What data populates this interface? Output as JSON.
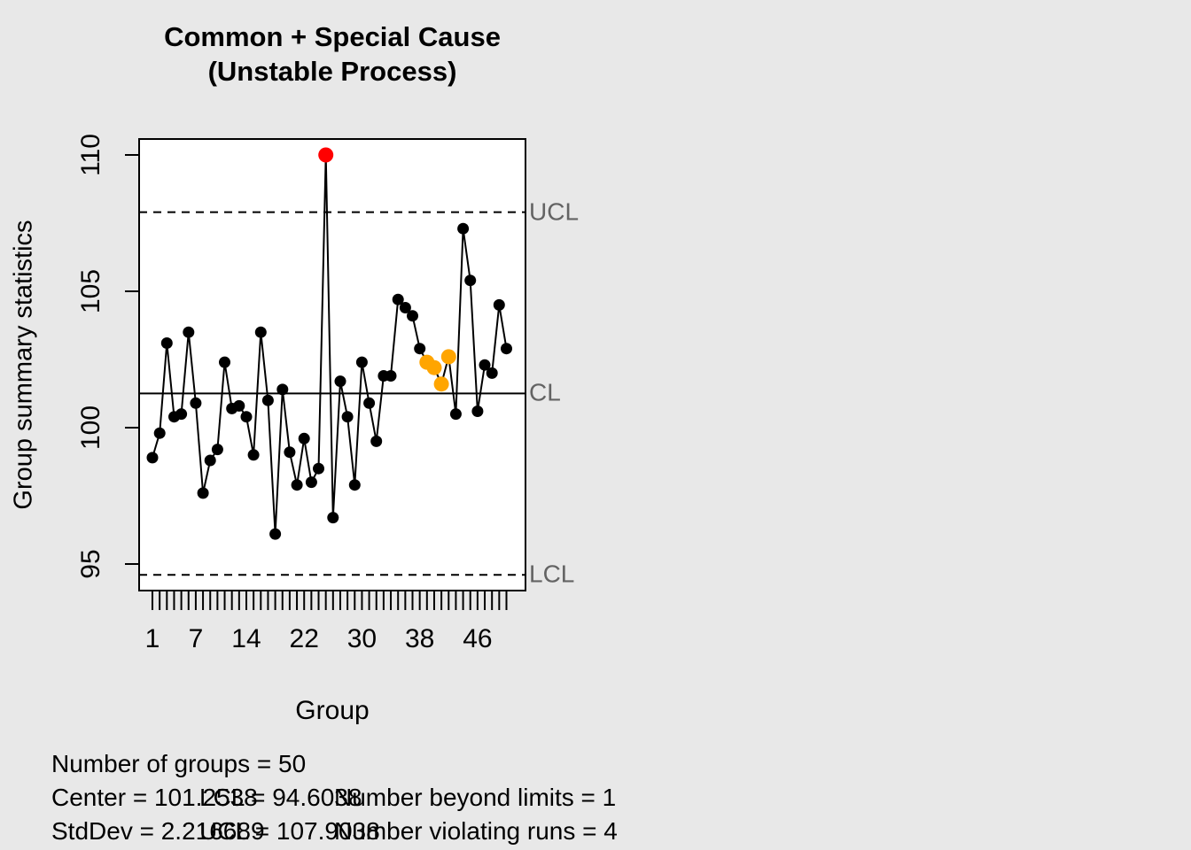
{
  "title": {
    "line1": "Common + Special Cause",
    "line2": "(Unstable Process)"
  },
  "y_axis": {
    "label": "Group summary statistics",
    "ticks": [
      95,
      100,
      105,
      110
    ]
  },
  "x_axis": {
    "label": "Group",
    "labeled_ticks": [
      1,
      7,
      14,
      22,
      30,
      38,
      46
    ],
    "n_ticks": 50
  },
  "limit_labels": {
    "ucl": "UCL",
    "cl": "CL",
    "lcl": "LCL"
  },
  "stats": {
    "n_groups": "Number of groups = 50",
    "center": "Center = 101.2538",
    "stddev": "StdDev = 2.216689",
    "lcl": "LCL = 94.6038",
    "ucl": "UCL = 107.9038",
    "beyond": "Number beyond limits = 1",
    "runs": "Number violating runs = 4"
  },
  "colors": {
    "background": "#E8E8E8",
    "plot_background": "#FFFFFF",
    "foreground": "#000000",
    "limit_label_gray": "#636363",
    "beyond_limit_red": "#FF0000",
    "violating_run_orange": "#FFA500"
  },
  "chart_data": {
    "type": "line",
    "title": "Common + Special Cause (Unstable Process)",
    "xlabel": "Group",
    "ylabel": "Group summary statistics",
    "x": [
      1,
      2,
      3,
      4,
      5,
      6,
      7,
      8,
      9,
      10,
      11,
      12,
      13,
      14,
      15,
      16,
      17,
      18,
      19,
      20,
      21,
      22,
      23,
      24,
      25,
      26,
      27,
      28,
      29,
      30,
      31,
      32,
      33,
      34,
      35,
      36,
      37,
      38,
      39,
      40,
      41,
      42,
      43,
      44,
      45,
      46,
      47,
      48,
      49,
      50
    ],
    "values": [
      98.9,
      99.8,
      103.1,
      100.4,
      100.5,
      103.5,
      100.9,
      97.6,
      98.8,
      99.2,
      102.4,
      100.7,
      100.8,
      100.4,
      99.0,
      103.5,
      101.0,
      96.1,
      101.4,
      99.1,
      97.9,
      99.6,
      98.0,
      98.5,
      110.0,
      96.7,
      101.7,
      100.4,
      97.9,
      102.4,
      100.9,
      99.5,
      101.9,
      101.9,
      104.7,
      104.4,
      104.1,
      102.9,
      102.4,
      102.2,
      101.6,
      102.6,
      100.5,
      107.3,
      105.4,
      100.6,
      102.3,
      102.0,
      104.5,
      102.9
    ],
    "center": 101.2538,
    "stddev": 2.216689,
    "ucl": 107.9038,
    "lcl": 94.6038,
    "n_groups": 50,
    "number_beyond_limits": 1,
    "number_violating_runs": 4,
    "beyond_limits_points": [
      25
    ],
    "violating_runs_points": [
      39,
      40,
      41,
      42
    ],
    "yticks": [
      95,
      100,
      105,
      110
    ],
    "xticks_labeled": [
      1,
      7,
      14,
      22,
      30,
      38,
      46
    ],
    "ylim": [
      94.0,
      110.6
    ],
    "grid": false,
    "legend_position": "none"
  }
}
